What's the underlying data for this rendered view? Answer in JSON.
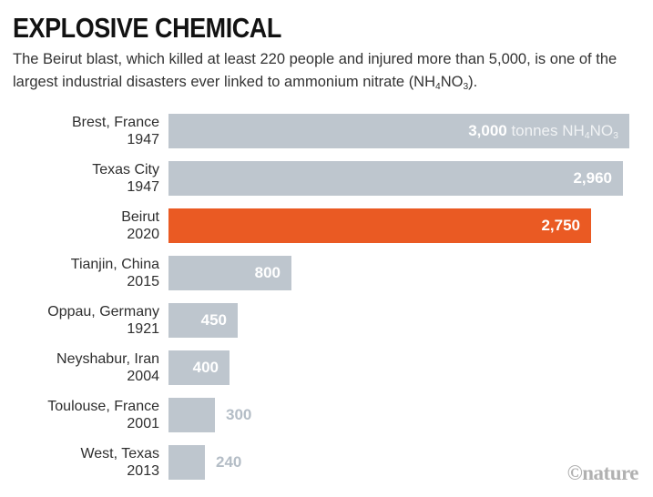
{
  "header": {
    "title": "EXPLOSIVE CHEMICAL",
    "subtitle_segments": [
      {
        "t": "The Beirut blast, which killed at least 220 people and injured more than 5,000, is one of the largest industrial disasters ever linked to ammonium nitrate (NH"
      },
      {
        "sub": "4"
      },
      {
        "t": "NO"
      },
      {
        "sub": "3"
      },
      {
        "t": ")."
      }
    ]
  },
  "chart_data": {
    "type": "bar",
    "orientation": "horizontal",
    "title": "EXPLOSIVE CHEMICAL",
    "xlabel": "",
    "ylabel": "",
    "xlim": [
      0,
      3000
    ],
    "grid": false,
    "legend": false,
    "unit": "tonnes NH4NO3",
    "unit_segments": [
      {
        "t": " tonnes NH"
      },
      {
        "sub": "4"
      },
      {
        "t": "NO"
      },
      {
        "sub": "3"
      }
    ],
    "categories": [
      "Brest, France 1947",
      "Texas City 1947",
      "Beirut 2020",
      "Tianjin, China 2015",
      "Oppau, Germany 1921",
      "Neyshabur, Iran 2004",
      "Toulouse, France 2001",
      "West, Texas 2013"
    ],
    "values": [
      3000,
      2960,
      2750,
      800,
      450,
      400,
      300,
      240
    ],
    "bars": [
      {
        "location": "Brest, France",
        "year": "1947",
        "value": 3000,
        "value_label": "3,000",
        "show_unit": true,
        "highlight": false,
        "label_placement": "inside"
      },
      {
        "location": "Texas City",
        "year": "1947",
        "value": 2960,
        "value_label": "2,960",
        "show_unit": false,
        "highlight": false,
        "label_placement": "inside"
      },
      {
        "location": "Beirut",
        "year": "2020",
        "value": 2750,
        "value_label": "2,750",
        "show_unit": false,
        "highlight": true,
        "label_placement": "inside"
      },
      {
        "location": "Tianjin, China",
        "year": "2015",
        "value": 800,
        "value_label": "800",
        "show_unit": false,
        "highlight": false,
        "label_placement": "inside"
      },
      {
        "location": "Oppau, Germany",
        "year": "1921",
        "value": 450,
        "value_label": "450",
        "show_unit": false,
        "highlight": false,
        "label_placement": "inside"
      },
      {
        "location": "Neyshabur, Iran",
        "year": "2004",
        "value": 400,
        "value_label": "400",
        "show_unit": false,
        "highlight": false,
        "label_placement": "inside"
      },
      {
        "location": "Toulouse, France",
        "year": "2001",
        "value": 300,
        "value_label": "300",
        "show_unit": false,
        "highlight": false,
        "label_placement": "outside"
      },
      {
        "location": "West, Texas",
        "year": "2013",
        "value": 240,
        "value_label": "240",
        "show_unit": false,
        "highlight": false,
        "label_placement": "outside"
      }
    ],
    "colors": {
      "bar": "#bec6ce",
      "highlight": "#ea5a23",
      "outside_label": "#b4bdc6",
      "value_text": "#ffffff"
    }
  },
  "footer": {
    "credit": "©nature"
  }
}
